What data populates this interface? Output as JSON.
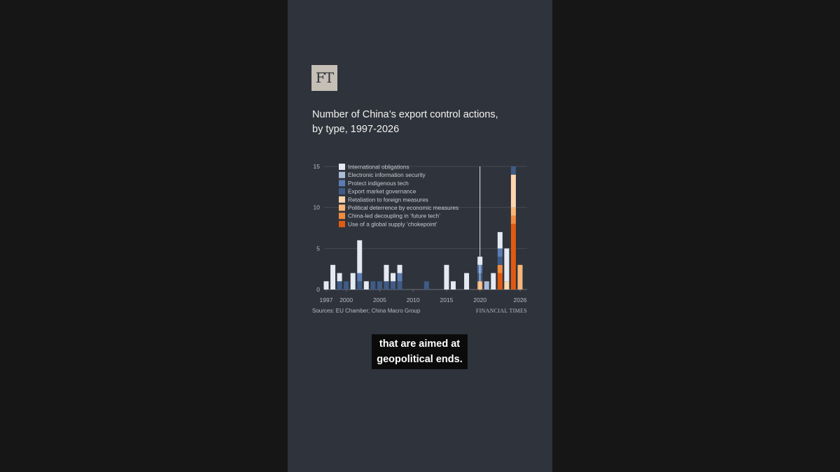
{
  "logo": "FT",
  "title_lines": [
    "Number of China’s export control actions,",
    "by type, 1997-2026"
  ],
  "source": "Sources: EU Chamber; China Macro Group",
  "publisher": "FINANCIAL TIMES",
  "caption_lines": [
    "that are aimed at",
    "geopolitical ends."
  ],
  "chart_data": {
    "type": "bar",
    "stacked": true,
    "title": "Number of China’s export control actions, by type, 1997-2026",
    "ylim": [
      0,
      15
    ],
    "yticks": [
      0,
      5,
      10,
      15
    ],
    "xtick_labels": [
      "1997",
      "2000",
      "2005",
      "2010",
      "2015",
      "2020",
      "2026"
    ],
    "grid": true,
    "legend_position": "top-left",
    "marker_line_year": 2020,
    "categories": [
      1997,
      1998,
      1999,
      2000,
      2001,
      2002,
      2003,
      2004,
      2005,
      2006,
      2007,
      2008,
      2009,
      2010,
      2011,
      2012,
      2013,
      2014,
      2015,
      2016,
      2017,
      2018,
      2019,
      2020,
      2021,
      2022,
      2023,
      2024,
      2025,
      2026
    ],
    "series": [
      {
        "name": "Use of a global supply ‘chokepoint’",
        "color": "#e05a12",
        "values": [
          0,
          0,
          0,
          0,
          0,
          0,
          0,
          0,
          0,
          0,
          0,
          0,
          0,
          0,
          0,
          0,
          0,
          0,
          0,
          0,
          0,
          0,
          0,
          0,
          0,
          0,
          2,
          0,
          8,
          0
        ]
      },
      {
        "name": "China-led decoupling in ‘future tech’",
        "color": "#f28b40",
        "values": [
          0,
          0,
          0,
          0,
          0,
          0,
          0,
          0,
          0,
          0,
          0,
          0,
          0,
          0,
          0,
          0,
          0,
          0,
          0,
          0,
          0,
          0,
          0,
          0,
          0,
          0,
          1,
          0,
          1,
          0
        ]
      },
      {
        "name": "Political deterrence by economic measures",
        "color": "#f8b678",
        "values": [
          0,
          0,
          0,
          0,
          0,
          0,
          0,
          0,
          0,
          0,
          0,
          0,
          0,
          0,
          0,
          0,
          0,
          0,
          0,
          0,
          0,
          0,
          0,
          1,
          0,
          0,
          0,
          0,
          1,
          3
        ]
      },
      {
        "name": "Retaliation to foreign measures",
        "color": "#fdd6ae",
        "values": [
          0,
          0,
          0,
          0,
          0,
          0,
          0,
          0,
          0,
          0,
          0,
          0,
          0,
          0,
          0,
          0,
          0,
          0,
          0,
          0,
          0,
          0,
          0,
          0,
          0,
          0,
          0,
          1,
          4,
          0
        ]
      },
      {
        "name": "Export market governance",
        "color": "#3f5b86",
        "values": [
          0,
          0,
          1,
          1,
          0,
          1,
          0,
          1,
          1,
          1,
          1,
          1,
          0,
          0,
          0,
          1,
          0,
          0,
          0,
          0,
          0,
          0,
          0,
          1,
          0,
          0,
          1,
          0,
          1,
          0
        ]
      },
      {
        "name": "Protect indigenous tech",
        "color": "#5b7db2",
        "values": [
          0,
          0,
          0,
          0,
          0,
          1,
          0,
          0,
          0,
          0,
          0,
          1,
          0,
          0,
          0,
          0,
          0,
          0,
          0,
          0,
          0,
          0,
          0,
          1,
          0,
          0,
          1,
          0,
          0,
          0
        ]
      },
      {
        "name": "Electronic information security",
        "color": "#aabcd8",
        "values": [
          0,
          0,
          0,
          0,
          0,
          0,
          0,
          0,
          0,
          0,
          0,
          0,
          0,
          0,
          0,
          0,
          0,
          0,
          0,
          0,
          0,
          0,
          0,
          0,
          1,
          0,
          0,
          0,
          0,
          0
        ]
      },
      {
        "name": "International obligations",
        "color": "#e4e9f2",
        "values": [
          1,
          3,
          1,
          0,
          2,
          4,
          1,
          0,
          0,
          2,
          1,
          1,
          0,
          0,
          0,
          0,
          0,
          0,
          3,
          1,
          0,
          2,
          0,
          1,
          0,
          2,
          2,
          4,
          0,
          0
        ]
      }
    ],
    "legend_order": [
      7,
      6,
      5,
      4,
      3,
      2,
      1,
      0
    ]
  }
}
